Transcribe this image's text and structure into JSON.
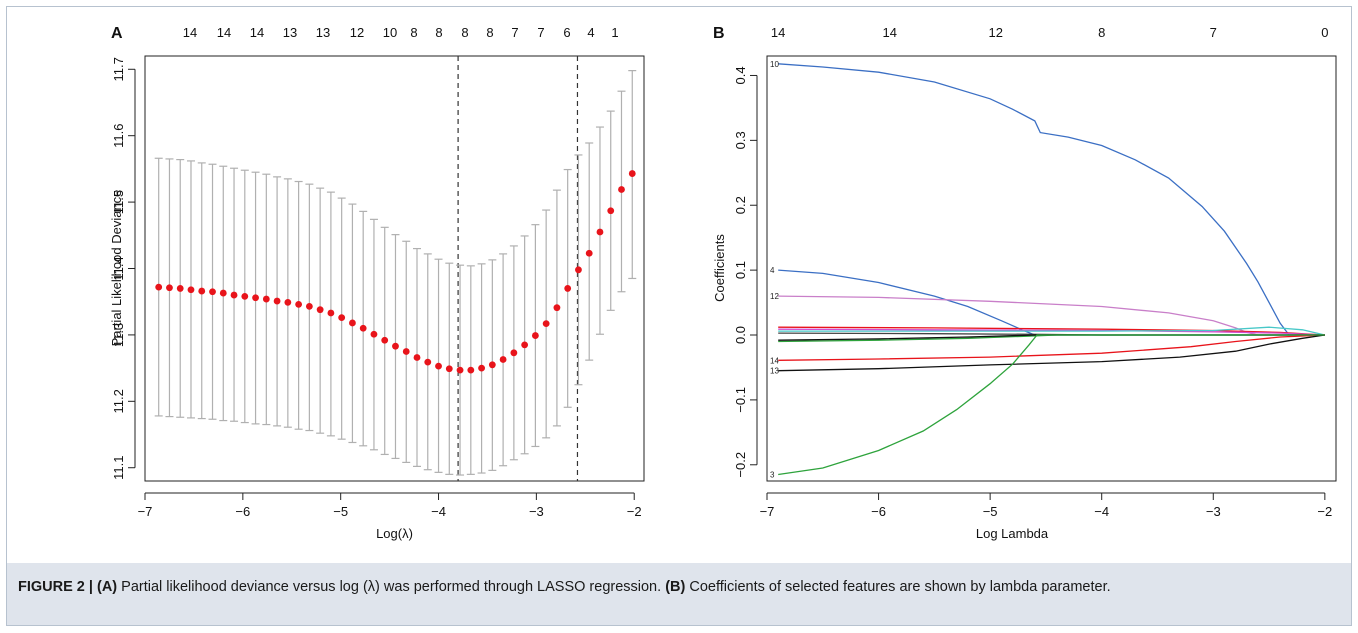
{
  "figure": {
    "caption": {
      "label": "FIGURE 2 |",
      "a_ref": "(A)",
      "a_text": " Partial likelihood deviance versus log (λ) was performed through LASSO regression. ",
      "b_ref": "(B)",
      "b_text": " Coefficients of selected features are shown by lambda parameter."
    }
  },
  "chart_data": [
    {
      "panel": "A",
      "type": "scatter",
      "xlabel": "Log(λ)",
      "ylabel": "Partial Likelihood Deviance",
      "xlim": [
        -7.0,
        -1.9
      ],
      "ylim": [
        11.08,
        11.72
      ],
      "x_ticks": [
        "-7",
        "-6",
        "-5",
        "-4",
        "-3",
        "-2"
      ],
      "y_ticks": [
        "11.1",
        "11.2",
        "11.3",
        "11.4",
        "11.5",
        "11.6",
        "11.7"
      ],
      "top_labels": [
        "14",
        "14",
        "14",
        "13",
        "13",
        "12",
        "10",
        "8",
        "8",
        "8",
        "8",
        "7",
        "7",
        "6",
        "4",
        "1"
      ],
      "point_color": "#e8141b",
      "errorbar_color": "#b0b0b0",
      "vlines": [
        -3.8,
        -2.58
      ],
      "grid": false,
      "points": [
        {
          "x": -6.86,
          "y": 11.372,
          "lo": 11.178,
          "hi": 11.566
        },
        {
          "x": -6.75,
          "y": 11.371,
          "lo": 11.177,
          "hi": 11.565
        },
        {
          "x": -6.64,
          "y": 11.37,
          "lo": 11.176,
          "hi": 11.564
        },
        {
          "x": -6.53,
          "y": 11.368,
          "lo": 11.175,
          "hi": 11.562
        },
        {
          "x": -6.42,
          "y": 11.366,
          "lo": 11.174,
          "hi": 11.559
        },
        {
          "x": -6.31,
          "y": 11.365,
          "lo": 11.173,
          "hi": 11.557
        },
        {
          "x": -6.2,
          "y": 11.363,
          "lo": 11.171,
          "hi": 11.554
        },
        {
          "x": -6.09,
          "y": 11.36,
          "lo": 11.17,
          "hi": 11.551
        },
        {
          "x": -5.98,
          "y": 11.358,
          "lo": 11.168,
          "hi": 11.548
        },
        {
          "x": -5.87,
          "y": 11.356,
          "lo": 11.166,
          "hi": 11.545
        },
        {
          "x": -5.76,
          "y": 11.354,
          "lo": 11.165,
          "hi": 11.542
        },
        {
          "x": -5.65,
          "y": 11.351,
          "lo": 11.163,
          "hi": 11.538
        },
        {
          "x": -5.54,
          "y": 11.349,
          "lo": 11.161,
          "hi": 11.535
        },
        {
          "x": -5.43,
          "y": 11.346,
          "lo": 11.158,
          "hi": 11.531
        },
        {
          "x": -5.32,
          "y": 11.343,
          "lo": 11.156,
          "hi": 11.527
        },
        {
          "x": -5.21,
          "y": 11.338,
          "lo": 11.152,
          "hi": 11.521
        },
        {
          "x": -5.1,
          "y": 11.333,
          "lo": 11.148,
          "hi": 11.515
        },
        {
          "x": -4.99,
          "y": 11.326,
          "lo": 11.143,
          "hi": 11.506
        },
        {
          "x": -4.88,
          "y": 11.318,
          "lo": 11.138,
          "hi": 11.497
        },
        {
          "x": -4.77,
          "y": 11.31,
          "lo": 11.133,
          "hi": 11.486
        },
        {
          "x": -4.66,
          "y": 11.301,
          "lo": 11.127,
          "hi": 11.474
        },
        {
          "x": -4.55,
          "y": 11.292,
          "lo": 11.12,
          "hi": 11.462
        },
        {
          "x": -4.44,
          "y": 11.283,
          "lo": 11.114,
          "hi": 11.451
        },
        {
          "x": -4.33,
          "y": 11.275,
          "lo": 11.108,
          "hi": 11.441
        },
        {
          "x": -4.22,
          "y": 11.266,
          "lo": 11.102,
          "hi": 11.43
        },
        {
          "x": -4.11,
          "y": 11.259,
          "lo": 11.097,
          "hi": 11.422
        },
        {
          "x": -4.0,
          "y": 11.253,
          "lo": 11.093,
          "hi": 11.414
        },
        {
          "x": -3.89,
          "y": 11.249,
          "lo": 11.09,
          "hi": 11.408
        },
        {
          "x": -3.78,
          "y": 11.247,
          "lo": 11.089,
          "hi": 11.405
        },
        {
          "x": -3.67,
          "y": 11.247,
          "lo": 11.09,
          "hi": 11.404
        },
        {
          "x": -3.56,
          "y": 11.25,
          "lo": 11.092,
          "hi": 11.407
        },
        {
          "x": -3.45,
          "y": 11.255,
          "lo": 11.096,
          "hi": 11.413
        },
        {
          "x": -3.34,
          "y": 11.263,
          "lo": 11.103,
          "hi": 11.422
        },
        {
          "x": -3.23,
          "y": 11.273,
          "lo": 11.112,
          "hi": 11.434
        },
        {
          "x": -3.12,
          "y": 11.285,
          "lo": 11.121,
          "hi": 11.449
        },
        {
          "x": -3.01,
          "y": 11.299,
          "lo": 11.132,
          "hi": 11.466
        },
        {
          "x": -2.9,
          "y": 11.317,
          "lo": 11.145,
          "hi": 11.488
        },
        {
          "x": -2.79,
          "y": 11.341,
          "lo": 11.163,
          "hi": 11.518
        },
        {
          "x": -2.68,
          "y": 11.37,
          "lo": 11.191,
          "hi": 11.549
        },
        {
          "x": -2.57,
          "y": 11.398,
          "lo": 11.225,
          "hi": 11.571
        },
        {
          "x": -2.46,
          "y": 11.423,
          "lo": 11.262,
          "hi": 11.589
        },
        {
          "x": -2.35,
          "y": 11.455,
          "lo": 11.301,
          "hi": 11.613
        },
        {
          "x": -2.24,
          "y": 11.487,
          "lo": 11.337,
          "hi": 11.637
        },
        {
          "x": -2.13,
          "y": 11.519,
          "lo": 11.365,
          "hi": 11.667
        },
        {
          "x": -2.02,
          "y": 11.543,
          "lo": 11.385,
          "hi": 11.698
        }
      ]
    },
    {
      "panel": "B",
      "type": "line",
      "xlabel": "Log Lambda",
      "ylabel": "Coefficients",
      "xlim": [
        -7.0,
        -1.9
      ],
      "ylim": [
        -0.225,
        0.43
      ],
      "x_ticks": [
        "-7",
        "-6",
        "-5",
        "-4",
        "-3",
        "-2"
      ],
      "y_ticks": [
        "-0.2",
        "-0.1",
        "0.0",
        "0.1",
        "0.2",
        "0.3",
        "0.4"
      ],
      "top_labels": [
        "14",
        "14",
        "12",
        "8",
        "7",
        "0"
      ],
      "grid": false,
      "series": [
        {
          "name": "10",
          "color": "#3b6fc4",
          "x": [
            -6.9,
            -6.5,
            -6.0,
            -5.5,
            -5.0,
            -4.8,
            -4.6,
            -4.55,
            -4.3,
            -4.0,
            -3.7,
            -3.4,
            -3.1,
            -2.9,
            -2.7,
            -2.6,
            -2.5,
            -2.4,
            -2.32,
            -2.0
          ],
          "y": [
            0.418,
            0.413,
            0.405,
            0.39,
            0.364,
            0.348,
            0.33,
            0.312,
            0.305,
            0.292,
            0.27,
            0.242,
            0.198,
            0.16,
            0.11,
            0.082,
            0.05,
            0.018,
            0.0,
            0.0
          ]
        },
        {
          "name": "4",
          "color": "#3b6fc4",
          "x": [
            -6.9,
            -6.5,
            -6.0,
            -5.5,
            -5.2,
            -4.9,
            -4.7,
            -4.6,
            -4.4,
            -2.0
          ],
          "y": [
            0.1,
            0.095,
            0.081,
            0.06,
            0.044,
            0.022,
            0.007,
            0.0,
            0.0,
            0.0
          ]
        },
        {
          "name": "12",
          "color": "#c97fc9",
          "x": [
            -6.9,
            -6.0,
            -5.0,
            -4.0,
            -3.4,
            -3.0,
            -2.8,
            -2.7,
            -2.6,
            -2.0
          ],
          "y": [
            0.06,
            0.058,
            0.052,
            0.044,
            0.034,
            0.022,
            0.011,
            0.004,
            0.0,
            0.0
          ]
        },
        {
          "name": "",
          "color": "#e8141b",
          "x": [
            -6.9,
            -5.5,
            -4.0,
            -3.0,
            -2.4,
            -2.0
          ],
          "y": [
            0.012,
            0.011,
            0.009,
            0.007,
            0.004,
            0.0
          ]
        },
        {
          "name": "",
          "color": "#d24fd2",
          "x": [
            -6.9,
            -5.5,
            -4.0,
            -3.0,
            -2.4,
            -2.0
          ],
          "y": [
            0.009,
            0.008,
            0.007,
            0.005,
            0.003,
            0.0
          ]
        },
        {
          "name": "",
          "color": "#47c8c8",
          "x": [
            -6.9,
            -5.5,
            -4.0,
            -3.0,
            -2.5,
            -2.2,
            -2.0
          ],
          "y": [
            0.006,
            0.006,
            0.006,
            0.007,
            0.012,
            0.008,
            0.0
          ]
        },
        {
          "name": "",
          "color": "#444444",
          "x": [
            -6.9,
            -5.5,
            -4.5,
            -4.0,
            -2.0
          ],
          "y": [
            0.003,
            0.002,
            0.001,
            0.0,
            0.0
          ]
        },
        {
          "name": "",
          "color": "#2ea33c",
          "x": [
            -6.9,
            -6.0,
            -5.2,
            -4.7,
            -4.4,
            -2.0
          ],
          "y": [
            -0.01,
            -0.008,
            -0.005,
            -0.002,
            0.0,
            0.0
          ]
        },
        {
          "name": "",
          "color": "#111111",
          "x": [
            -6.9,
            -6.0,
            -5.2,
            -4.8,
            -4.6,
            -2.0
          ],
          "y": [
            -0.008,
            -0.006,
            -0.003,
            -0.001,
            0.0,
            0.0
          ]
        },
        {
          "name": "14",
          "color": "#e8141b",
          "x": [
            -6.9,
            -6.0,
            -5.0,
            -4.0,
            -3.2,
            -2.8,
            -2.4,
            -2.0
          ],
          "y": [
            -0.039,
            -0.037,
            -0.034,
            -0.028,
            -0.018,
            -0.01,
            -0.003,
            0.0
          ]
        },
        {
          "name": "13",
          "color": "#111111",
          "x": [
            -6.9,
            -6.0,
            -5.0,
            -4.0,
            -3.3,
            -2.8,
            -2.5,
            -2.2,
            -2.0
          ],
          "y": [
            -0.055,
            -0.052,
            -0.046,
            -0.041,
            -0.034,
            -0.025,
            -0.014,
            -0.005,
            0.0
          ]
        },
        {
          "name": "3",
          "color": "#2ea33c",
          "x": [
            -6.9,
            -6.5,
            -6.0,
            -5.6,
            -5.3,
            -5.0,
            -4.8,
            -4.65,
            -4.58,
            -2.0
          ],
          "y": [
            -0.215,
            -0.205,
            -0.178,
            -0.148,
            -0.115,
            -0.075,
            -0.045,
            -0.015,
            0.0,
            0.0
          ]
        }
      ]
    }
  ]
}
